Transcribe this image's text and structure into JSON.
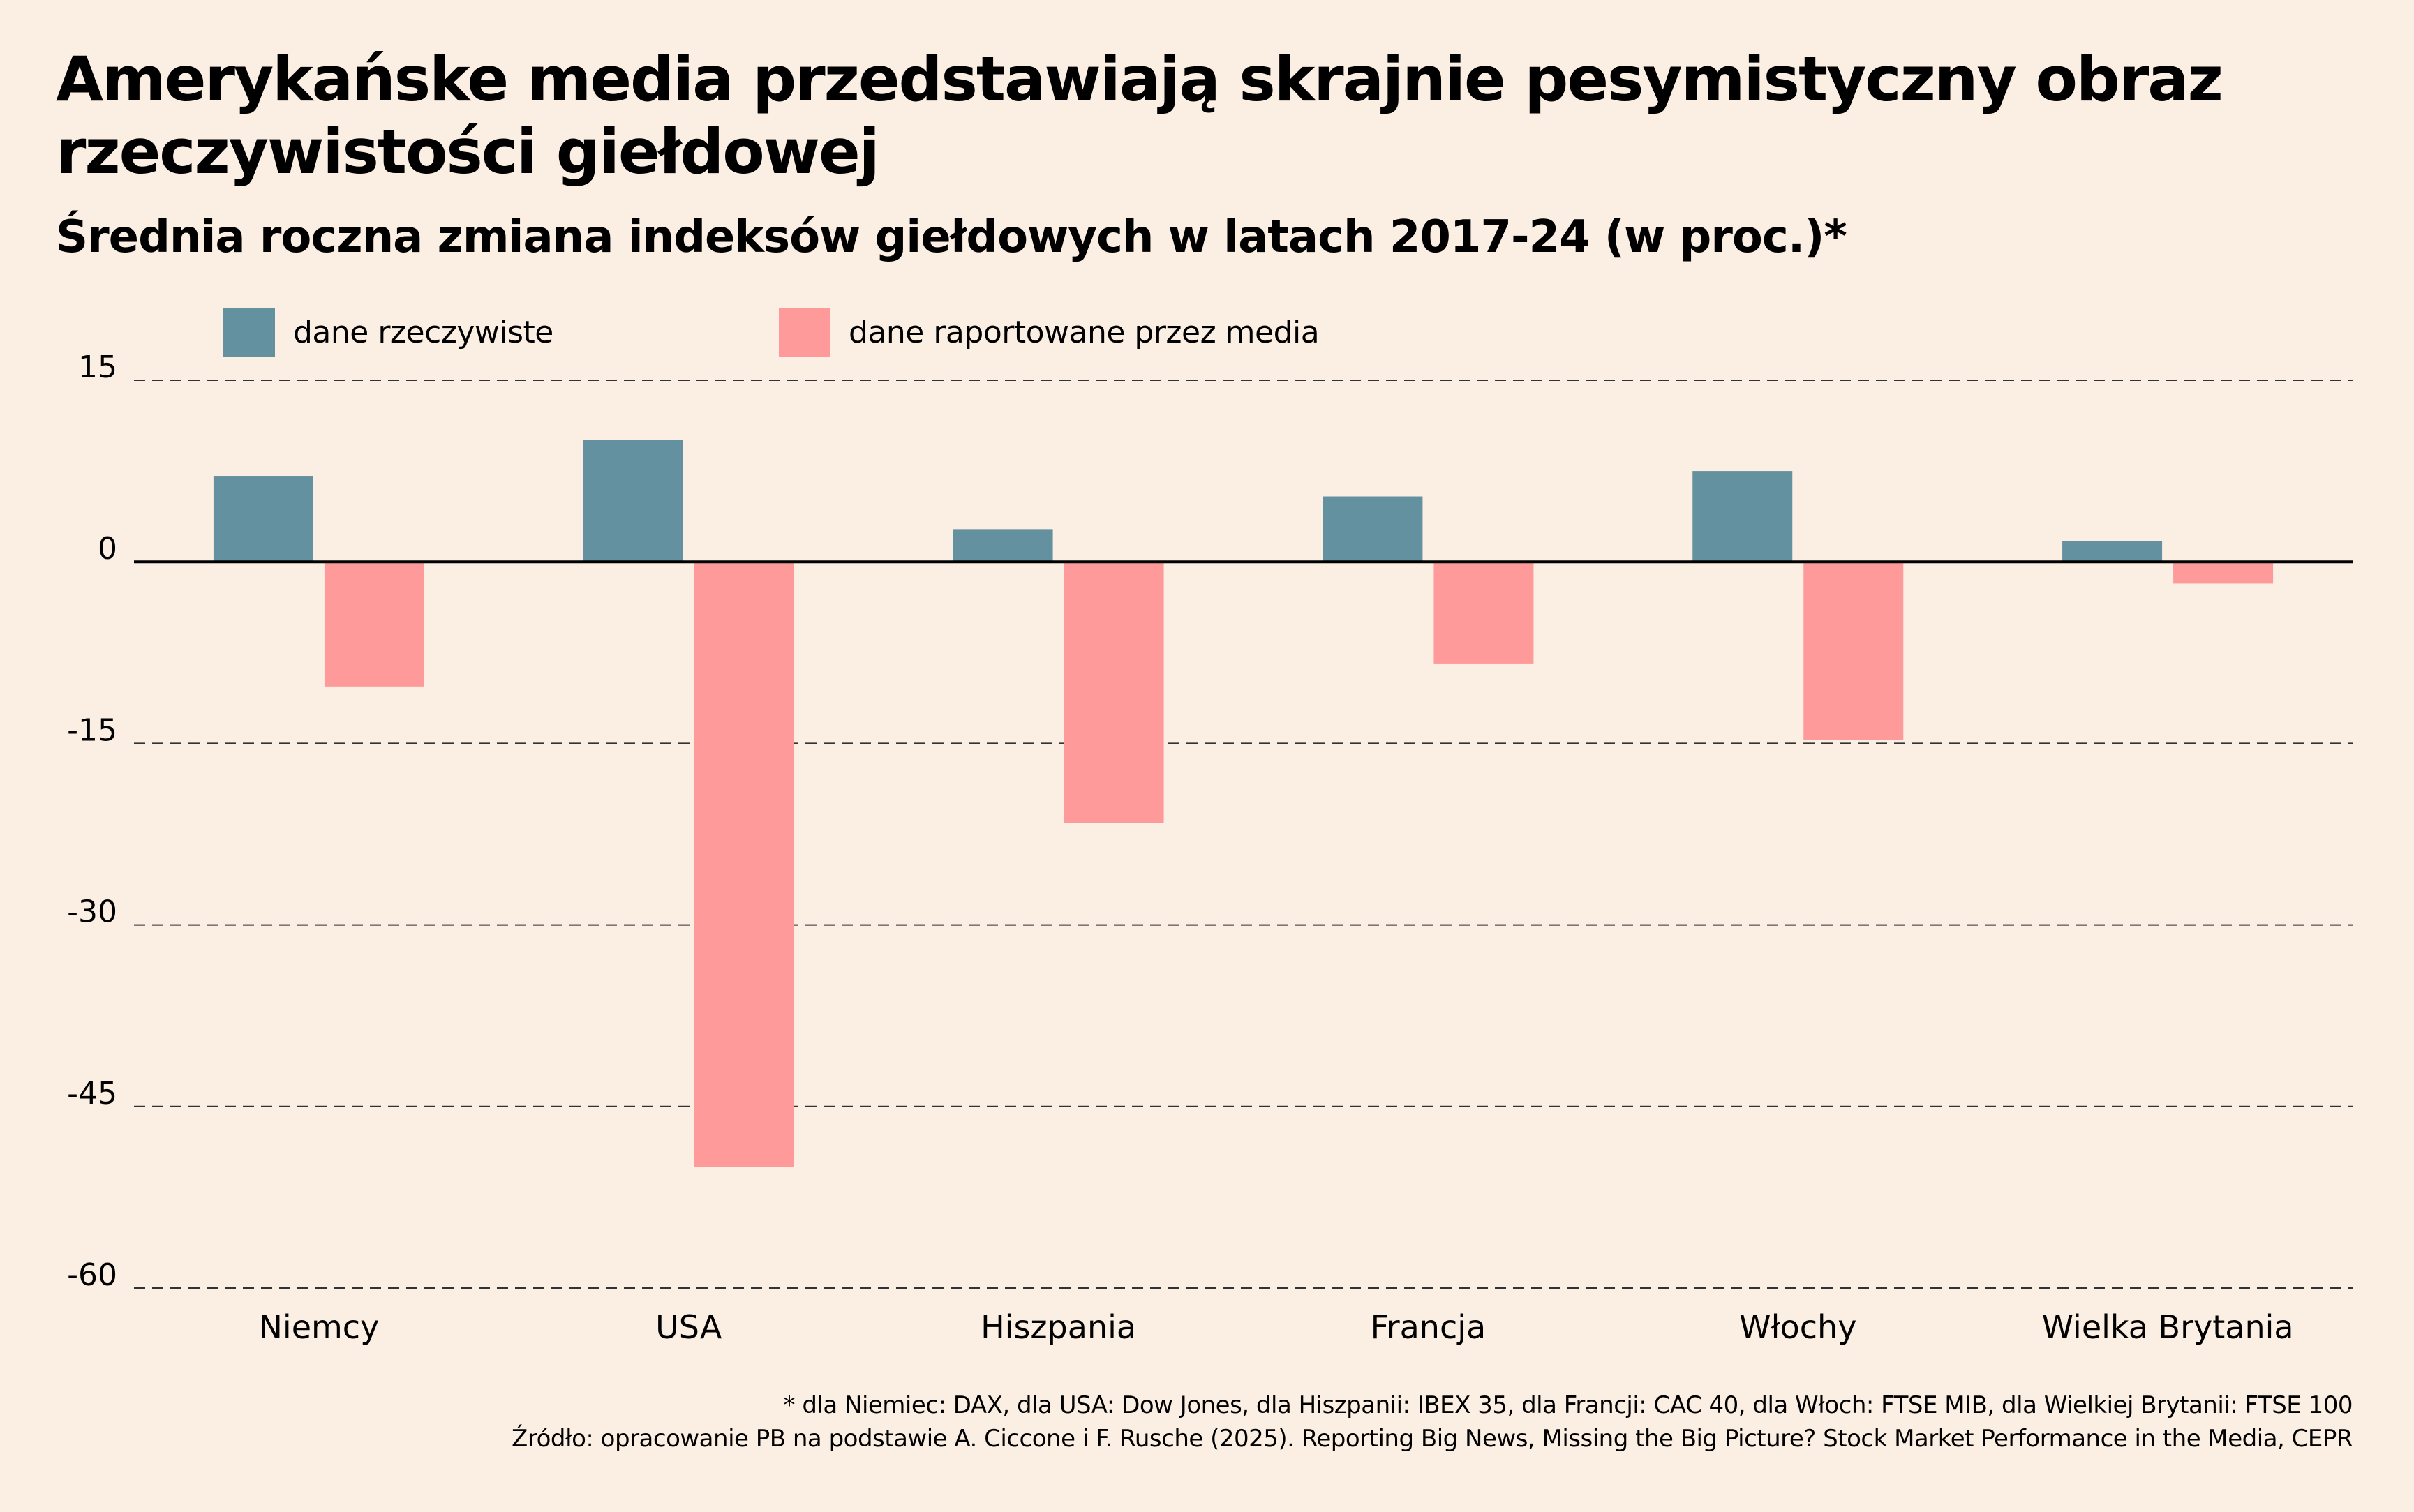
{
  "title": "Amerykańske media przedstawiają skrajnie pesymistyczny obraz rzeczywistości giełdowej",
  "subtitle": "Średnia roczna zmiana indeksów giełdowych w latach 2017-24 (w proc.)*",
  "colors": {
    "background": "#fbeee2",
    "actual": "#6391a0",
    "media": "#ff9a9a",
    "axis": "#000000"
  },
  "footnotes": [
    "* dla Niemiec: DAX, dla USA: Dow Jones, dla Hiszpanii: IBEX 35, dla Francji: CAC 40, dla Włoch: FTSE MIB, dla Wielkiej Brytanii: FTSE 100",
    "Źródło: opracowanie PB na podstawie A. Ciccone i F. Rusche (2025). Reporting Big News, Missing the Big Picture? Stock Market Performance in the Media, CEPR"
  ],
  "chart_data": {
    "type": "bar",
    "title": "Średnia roczna zmiana indeksów giełdowych w latach 2017-24 (w proc.)*",
    "xlabel": "",
    "ylabel": "",
    "categories": [
      "Niemcy",
      "USA",
      "Hiszpania",
      "Francja",
      "Włochy",
      "Wielka Brytania"
    ],
    "series": [
      {
        "name": "dane rzeczywiste",
        "color": "#6391a0",
        "values": [
          7.1,
          10.1,
          2.7,
          5.4,
          7.5,
          1.7
        ]
      },
      {
        "name": "dane raportowane przez media",
        "color": "#ff9a9a",
        "values": [
          -10.3,
          -50.0,
          -21.6,
          -8.4,
          -14.7,
          -1.8
        ]
      }
    ],
    "ylim": [
      -60,
      15
    ],
    "yticks": [
      "15",
      "0",
      "-15",
      "-30",
      "-45",
      "-60"
    ],
    "ytick_values": [
      15,
      0,
      -15,
      -30,
      -45,
      -60
    ],
    "grid": true,
    "legend_position": "top-left"
  }
}
